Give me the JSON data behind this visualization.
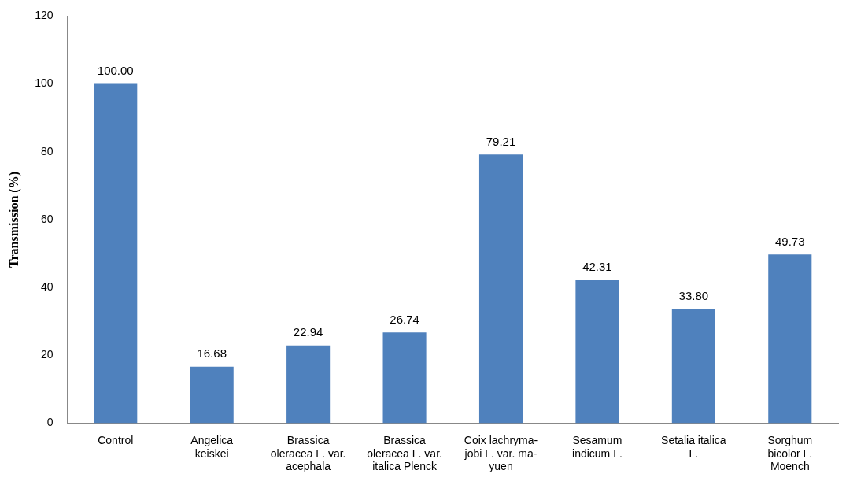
{
  "chart_data": {
    "type": "bar",
    "ylabel": "Transmission (%)",
    "categories": [
      "Control",
      "Angelica keiskei",
      "Brassica oleracea L. var. acephala",
      "Brassica oleracea L. var. italica Plenck",
      "Coix lachryma-jobi L. var. ma-yuen",
      "Sesamum indicum L.",
      "Setalia italica L.",
      "Sorghum bicolor L. Moench"
    ],
    "values": [
      100.0,
      16.68,
      22.94,
      26.74,
      79.21,
      42.31,
      33.8,
      49.73
    ],
    "value_labels": [
      "100.00",
      "16.68",
      "22.94",
      "26.74",
      "79.21",
      "42.31",
      "33.80",
      "49.73"
    ],
    "color": "#4f81bd",
    "ylim": [
      0,
      120
    ],
    "yticks": [
      0,
      20,
      40,
      60,
      80,
      100,
      120
    ],
    "grid": false,
    "legend": false
  }
}
